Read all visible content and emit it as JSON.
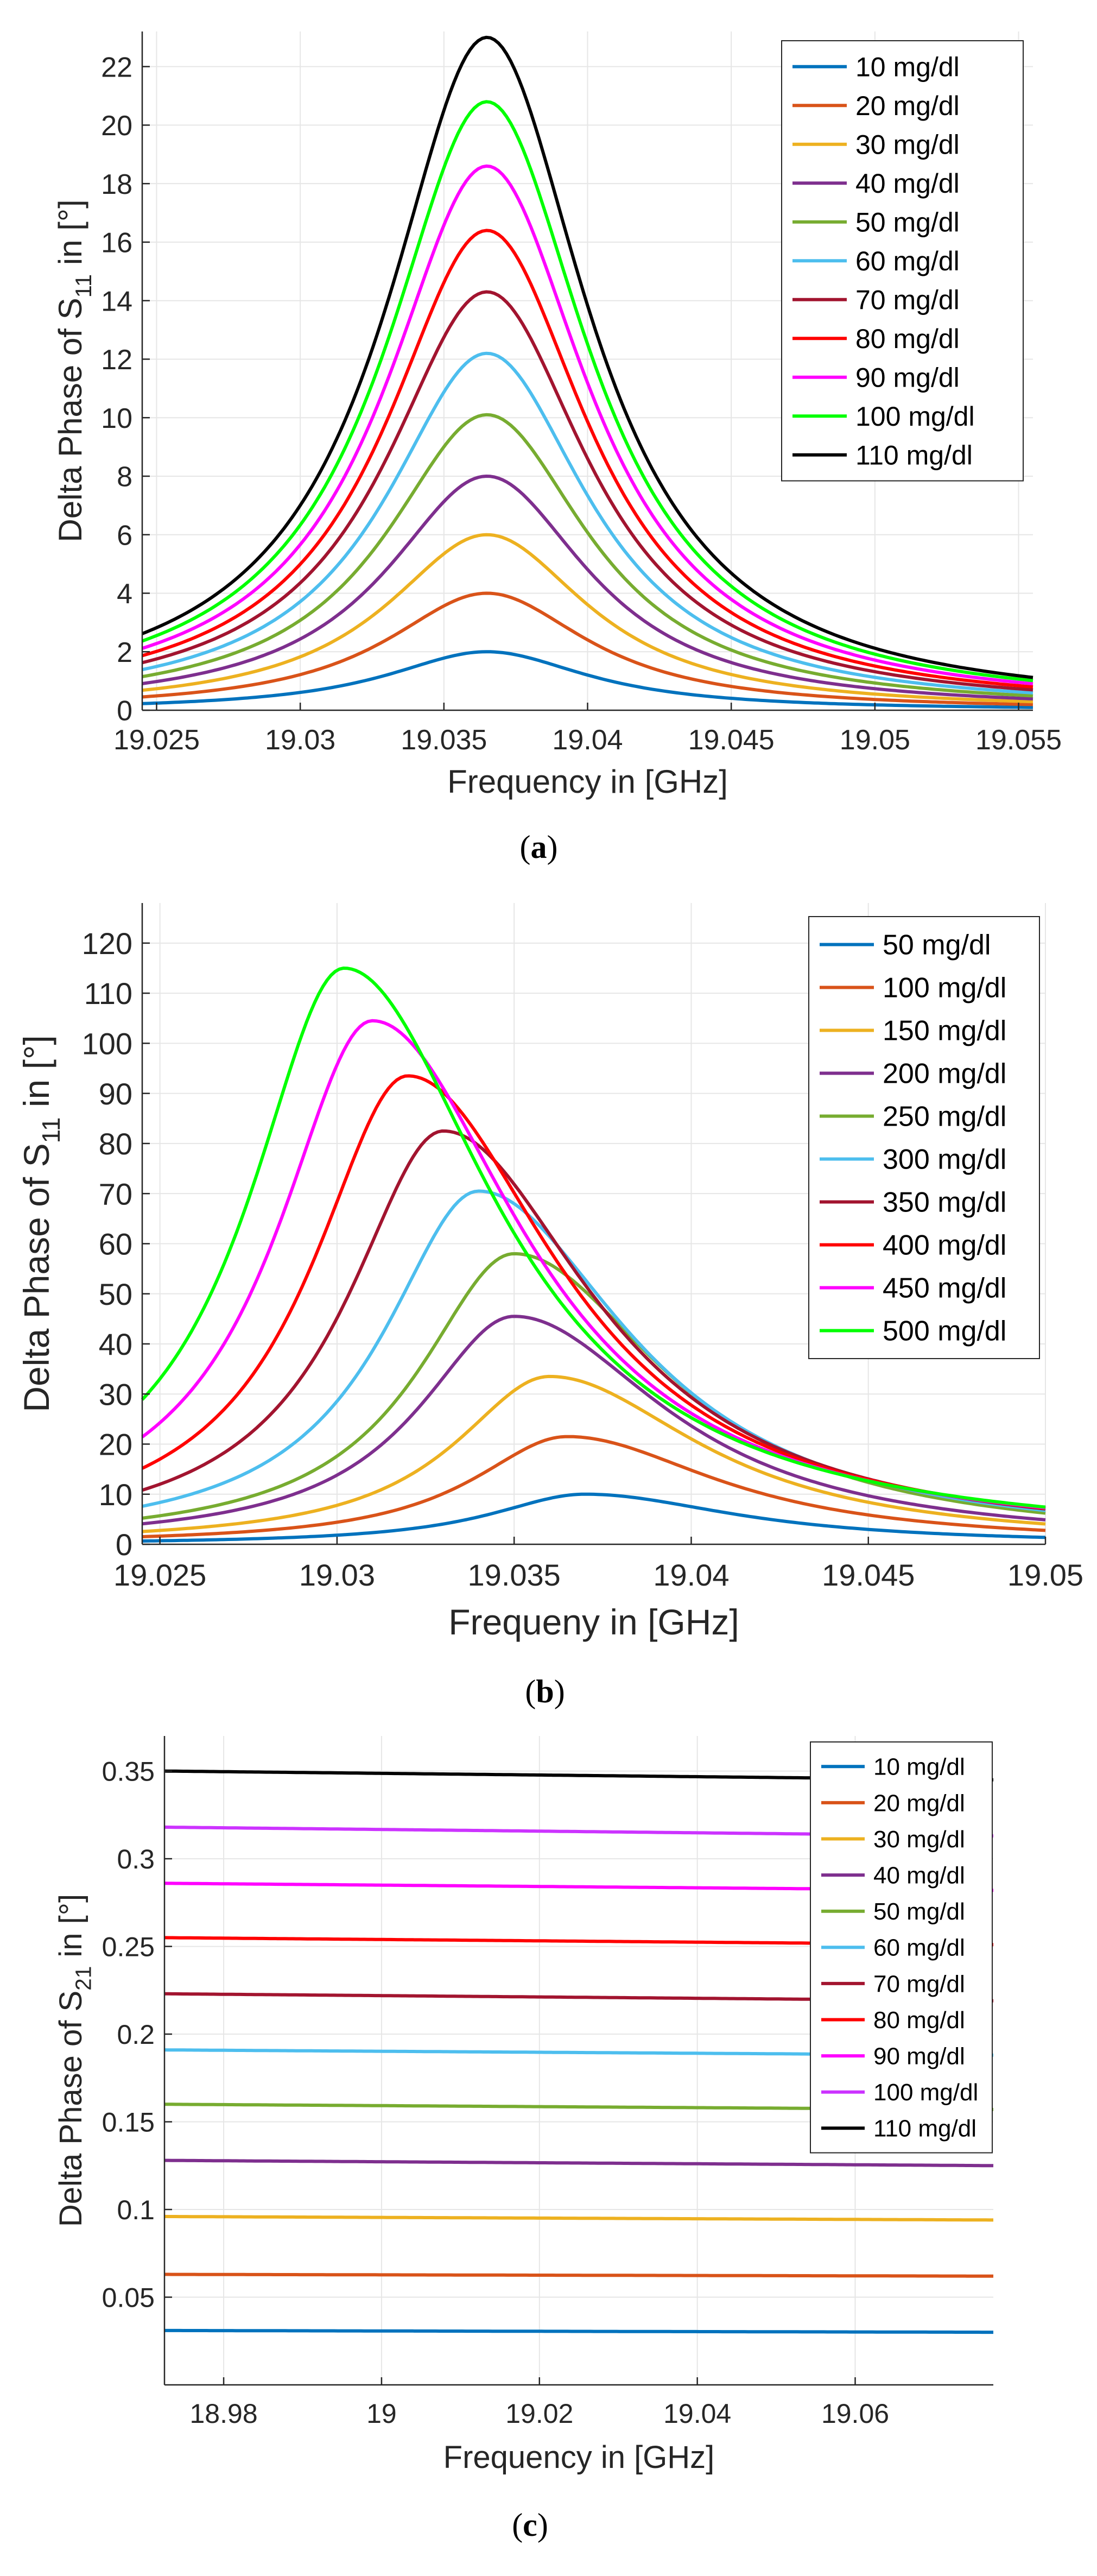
{
  "chart_data": [
    {
      "type": "line",
      "caption": "(a)",
      "xlabel": "Frequency in [GHz]",
      "ylabel": [
        "Delta Phase of S",
        "11",
        " in [°]"
      ],
      "xlim": [
        19.0245,
        19.0555
      ],
      "ylim": [
        0,
        23.2
      ],
      "xticks": [
        19.025,
        19.03,
        19.035,
        19.04,
        19.045,
        19.05,
        19.055
      ],
      "xtick_labels": [
        "19.025",
        "19.03",
        "19.035",
        "19.04",
        "19.045",
        "19.05",
        "19.055"
      ],
      "yticks": [
        0,
        2,
        4,
        6,
        8,
        10,
        12,
        14,
        16,
        18,
        20,
        22
      ],
      "ytick_labels": [
        "0",
        "2",
        "4",
        "6",
        "8",
        "10",
        "12",
        "14",
        "16",
        "18",
        "20",
        "22"
      ],
      "grid": true,
      "legend_position": "top-right",
      "curve": {
        "kind": "lorentz",
        "peak_x": 19.0365,
        "hwhm": 0.0043,
        "x_min": 19.0245,
        "x_max": 19.0555
      },
      "series": [
        {
          "name": "10 mg/dl",
          "color": "#0072BD",
          "peak": 2.0
        },
        {
          "name": "20 mg/dl",
          "color": "#D95319",
          "peak": 4.0
        },
        {
          "name": "30 mg/dl",
          "color": "#EDB120",
          "peak": 6.0
        },
        {
          "name": "40 mg/dl",
          "color": "#7E2F8E",
          "peak": 8.0
        },
        {
          "name": "50 mg/dl",
          "color": "#77AC30",
          "peak": 10.1
        },
        {
          "name": "60 mg/dl",
          "color": "#4DBEEE",
          "peak": 12.2
        },
        {
          "name": "70 mg/dl",
          "color": "#A2142F",
          "peak": 14.3
        },
        {
          "name": "80 mg/dl",
          "color": "#FF0000",
          "peak": 16.4
        },
        {
          "name": "90 mg/dl",
          "color": "#FF00FF",
          "peak": 18.6
        },
        {
          "name": "100 mg/dl",
          "color": "#00FF00",
          "peak": 20.8
        },
        {
          "name": "110 mg/dl",
          "color": "#000000",
          "peak": 23.0
        }
      ]
    },
    {
      "type": "line",
      "caption": "(b)",
      "xlabel": "Frequeny in [GHz]",
      "ylabel": [
        "Delta Phase of S",
        "11",
        " in [°]"
      ],
      "xlim": [
        19.0245,
        19.05
      ],
      "ylim": [
        0,
        128
      ],
      "xticks": [
        19.025,
        19.03,
        19.035,
        19.04,
        19.045,
        19.05
      ],
      "xtick_labels": [
        "19.025",
        "19.03",
        "19.035",
        "19.04",
        "19.045",
        "19.05"
      ],
      "yticks": [
        0,
        10,
        20,
        30,
        40,
        50,
        60,
        70,
        80,
        90,
        100,
        110,
        120
      ],
      "ytick_labels": [
        "0",
        "10",
        "20",
        "30",
        "40",
        "50",
        "60",
        "70",
        "80",
        "90",
        "100",
        "110",
        "120"
      ],
      "grid": true,
      "legend_position": "top-right",
      "curve": {
        "kind": "lorentz",
        "x_min": 19.0245,
        "x_max": 19.05,
        "hwhm_left": 0.0033,
        "hwhm_right": 0.0052
      },
      "series": [
        {
          "name": "50 mg/dl",
          "color": "#0072BD",
          "peak": 10,
          "peak_x": 19.037
        },
        {
          "name": "100 mg/dl",
          "color": "#D95319",
          "peak": 21.5,
          "peak_x": 19.0365
        },
        {
          "name": "150 mg/dl",
          "color": "#EDB120",
          "peak": 33.5,
          "peak_x": 19.036
        },
        {
          "name": "200 mg/dl",
          "color": "#7E2F8E",
          "peak": 45.5,
          "peak_x": 19.035
        },
        {
          "name": "250 mg/dl",
          "color": "#77AC30",
          "peak": 58,
          "peak_x": 19.035
        },
        {
          "name": "300 mg/dl",
          "color": "#4DBEEE",
          "peak": 70.5,
          "peak_x": 19.034
        },
        {
          "name": "350 mg/dl",
          "color": "#A2142F",
          "peak": 82.5,
          "peak_x": 19.033
        },
        {
          "name": "400 mg/dl",
          "color": "#FF0000",
          "peak": 93.5,
          "peak_x": 19.032
        },
        {
          "name": "450 mg/dl",
          "color": "#FF00FF",
          "peak": 104.5,
          "peak_x": 19.031
        },
        {
          "name": "500 mg/dl",
          "color": "#00FF00",
          "peak": 115,
          "peak_x": 19.0302
        }
      ]
    },
    {
      "type": "line",
      "caption": "(c)",
      "xlabel": "Frequency in [GHz]",
      "ylabel": [
        "Delta Phase of S",
        "21",
        " in [°]"
      ],
      "xlim": [
        18.9725,
        19.0775
      ],
      "ylim": [
        0,
        0.37
      ],
      "xticks": [
        18.98,
        19.0,
        19.02,
        19.04,
        19.06
      ],
      "xtick_labels": [
        "18.98",
        "19",
        "19.02",
        "19.04",
        "19.06"
      ],
      "yticks": [
        0.05,
        0.1,
        0.15,
        0.2,
        0.25,
        0.3,
        0.35
      ],
      "ytick_labels": [
        "0.05",
        "0.1",
        "0.15",
        "0.2",
        "0.25",
        "0.3",
        "0.35"
      ],
      "grid": true,
      "legend_position": "top-right",
      "curve": {
        "kind": "linear",
        "x_min": 18.9725,
        "x_max": 19.0775
      },
      "series": [
        {
          "name": "10 mg/dl",
          "color": "#0072BD",
          "y_start": 0.031,
          "y_end": 0.03
        },
        {
          "name": "20 mg/dl",
          "color": "#D95319",
          "y_start": 0.063,
          "y_end": 0.062
        },
        {
          "name": "30 mg/dl",
          "color": "#EDB120",
          "y_start": 0.096,
          "y_end": 0.094
        },
        {
          "name": "40 mg/dl",
          "color": "#7E2F8E",
          "y_start": 0.128,
          "y_end": 0.125
        },
        {
          "name": "50 mg/dl",
          "color": "#77AC30",
          "y_start": 0.16,
          "y_end": 0.157
        },
        {
          "name": "60 mg/dl",
          "color": "#4DBEEE",
          "y_start": 0.191,
          "y_end": 0.188
        },
        {
          "name": "70 mg/dl",
          "color": "#A2142F",
          "y_start": 0.223,
          "y_end": 0.219
        },
        {
          "name": "80 mg/dl",
          "color": "#FF0000",
          "y_start": 0.255,
          "y_end": 0.251
        },
        {
          "name": "90 mg/dl",
          "color": "#FF00FF",
          "y_start": 0.286,
          "y_end": 0.282
        },
        {
          "name": "100 mg/dl",
          "color": "#CC33FF",
          "y_start": 0.318,
          "y_end": 0.313
        },
        {
          "name": "110 mg/dl",
          "color": "#000000",
          "y_start": 0.35,
          "y_end": 0.345
        }
      ]
    }
  ]
}
